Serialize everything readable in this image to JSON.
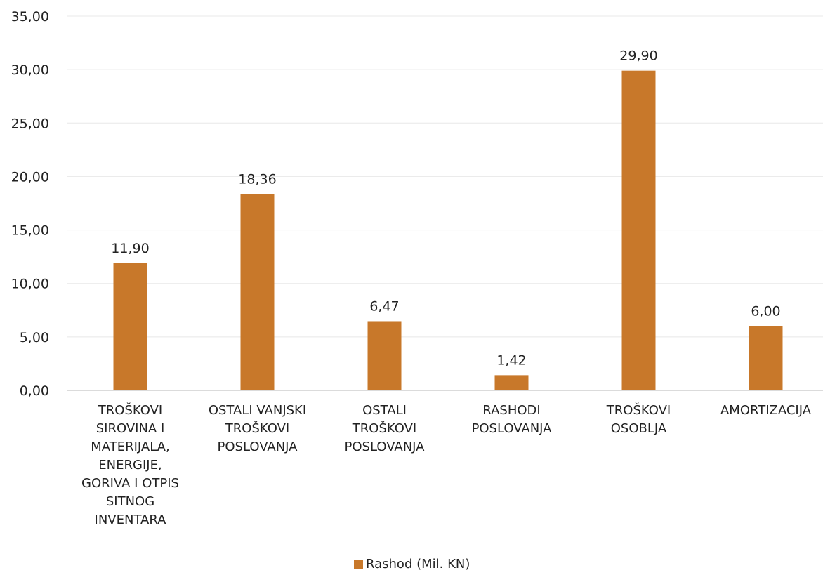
{
  "chart_data": {
    "type": "bar",
    "title": "",
    "xlabel": "",
    "ylabel": "",
    "categories": [
      [
        "TROŠKOVI",
        "SIROVINA I",
        "MATERIJALA,",
        "ENERGIJE,",
        "GORIVA I OTPIS",
        "SITNOG",
        "INVENTARA"
      ],
      [
        "OSTALI VANJSKI",
        "TROŠKOVI",
        "POSLOVANJA"
      ],
      [
        "OSTALI",
        "TROŠKOVI",
        "POSLOVANJA"
      ],
      [
        "RASHODI",
        "POSLOVANJA"
      ],
      [
        "TROŠKOVI",
        "OSOBLJA"
      ],
      [
        "AMORTIZACIJA"
      ]
    ],
    "series": [
      {
        "name": "Rashod (Mil. KN)",
        "values": [
          11.9,
          18.36,
          6.47,
          1.42,
          29.9,
          6.0
        ],
        "labels": [
          "11,90",
          "18,36",
          "6,47",
          "1,42",
          "29,90",
          "6,00"
        ],
        "color": "#c8782a"
      }
    ],
    "ylim": [
      0,
      35
    ],
    "yticks": [
      0,
      5,
      10,
      15,
      20,
      25,
      30,
      35
    ],
    "ytick_labels": [
      "0,00",
      "5,00",
      "10,00",
      "15,00",
      "20,00",
      "25,00",
      "30,00",
      "35,00"
    ],
    "grid": true,
    "legend_position": "bottom-center"
  },
  "colors": {
    "bar": "#c8782a",
    "grid": "#e8e8e8",
    "axis": "#cfcfcf",
    "text": "#222222"
  }
}
